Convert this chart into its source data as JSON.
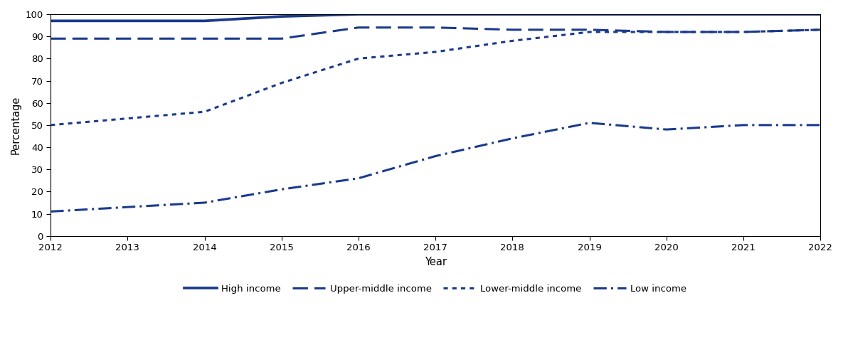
{
  "years": [
    2012,
    2013,
    2014,
    2015,
    2016,
    2017,
    2018,
    2019,
    2020,
    2021,
    2022
  ],
  "high_income": [
    97,
    97,
    97,
    99,
    100,
    100,
    100,
    100,
    100,
    100,
    100
  ],
  "upper_middle_income": [
    89,
    89,
    89,
    89,
    94,
    94,
    93,
    93,
    92,
    92,
    93
  ],
  "lower_middle_income": [
    50,
    53,
    56,
    69,
    80,
    83,
    88,
    92,
    92,
    92,
    93
  ],
  "low_income": [
    11,
    13,
    15,
    21,
    26,
    36,
    44,
    51,
    48,
    50,
    50
  ],
  "color": "#1a3a8c",
  "linewidth": 2.2,
  "ylabel": "Percentage",
  "xlabel": "Year",
  "ylim": [
    0,
    100
  ],
  "yticks": [
    0,
    10,
    20,
    30,
    40,
    50,
    60,
    70,
    80,
    90,
    100
  ],
  "legend_labels": [
    "High income",
    "Upper-middle income",
    "Lower-middle income",
    "Low income"
  ],
  "background_color": "#ffffff",
  "figwidth": 11.85,
  "figheight": 4.95,
  "dpi": 100
}
